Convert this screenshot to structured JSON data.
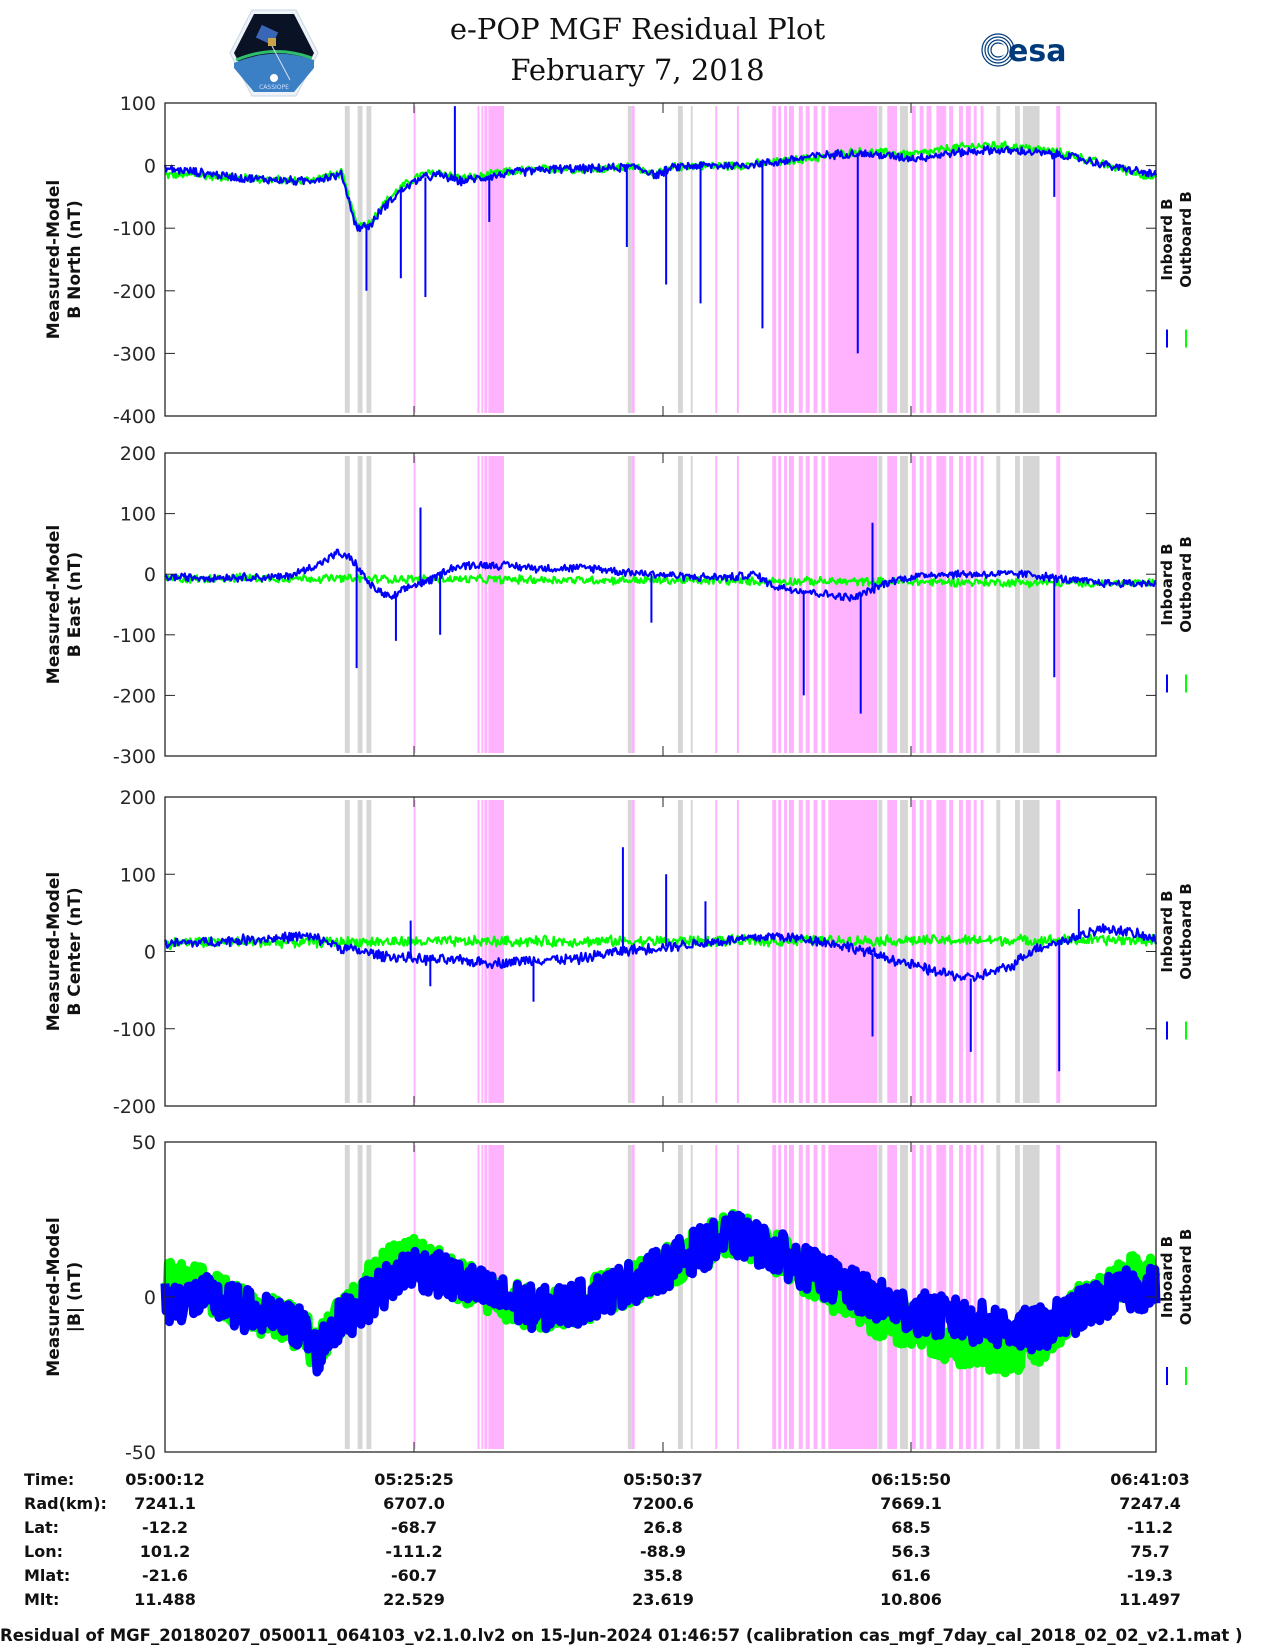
{
  "header": {
    "title": "e-POP MGF Residual Plot",
    "date": "February 7, 2018",
    "left_logo": "cassiope-mission-logo",
    "left_logo_text": "CASSIOPE",
    "right_logo": "esa-logo",
    "right_logo_text": "esa"
  },
  "colors": {
    "inboard": "#0000ff",
    "outboard": "#00ff00",
    "gray_band": "#d6d6d6",
    "pink_band": "#ffb3ff",
    "axis": "#262626"
  },
  "chart_data": [
    {
      "type": "line",
      "title": "",
      "xlabel": "",
      "ylabel": "Measured-Model\nB North (nT)",
      "ylabel_lines": [
        "Measured-Model",
        "B North (nT)"
      ],
      "ylim": [
        -400,
        100
      ],
      "yticks": [
        100,
        0,
        -100,
        -200,
        -300,
        -400
      ],
      "ytick_labels": [
        "100",
        "0",
        "-100",
        "-200",
        "-300",
        "-400"
      ],
      "xlim_minutes": [
        0,
        100.85
      ],
      "xticks_labels": [
        "05:00:12",
        "05:25:25",
        "05:50:37",
        "06:15:50",
        "06:41:03"
      ],
      "legend": [
        "Inboard B",
        "Outboard B"
      ],
      "legend_position": "right",
      "series": [
        {
          "name": "Inboard B",
          "color": "#0000ff",
          "x": [
            0,
            3,
            8,
            14,
            18,
            19.5,
            21,
            22,
            24,
            26,
            28,
            30,
            32,
            34,
            36,
            40,
            44,
            48,
            50,
            52,
            54,
            58,
            62,
            66,
            70,
            74,
            76,
            78,
            80,
            84,
            88,
            92,
            96,
            100.85
          ],
          "y": [
            -5,
            -10,
            -20,
            -25,
            -15,
            -100,
            -95,
            -70,
            -40,
            -20,
            -15,
            -25,
            -20,
            -15,
            -10,
            -5,
            -5,
            -2,
            -15,
            -2,
            0,
            0,
            5,
            15,
            20,
            15,
            12,
            15,
            20,
            25,
            22,
            15,
            0,
            -15
          ]
        },
        {
          "name": "Outboard B",
          "color": "#00ff00",
          "x": [
            0,
            3,
            8,
            14,
            18,
            19.5,
            21,
            22,
            24,
            26,
            28,
            30,
            32,
            34,
            36,
            40,
            44,
            48,
            50,
            52,
            54,
            58,
            62,
            66,
            70,
            74,
            76,
            78,
            80,
            84,
            88,
            92,
            96,
            100.85
          ],
          "y": [
            -15,
            -15,
            -20,
            -25,
            -12,
            -95,
            -90,
            -65,
            -35,
            -15,
            -10,
            -20,
            -18,
            -12,
            -8,
            -5,
            -5,
            -2,
            -15,
            -2,
            0,
            0,
            5,
            12,
            22,
            20,
            18,
            22,
            28,
            33,
            28,
            18,
            0,
            -20
          ]
        }
      ],
      "spikes": [
        {
          "x": 20.5,
          "y": -200
        },
        {
          "x": 24.0,
          "y": -180
        },
        {
          "x": 26.5,
          "y": -210
        },
        {
          "x": 33.0,
          "y": -90
        },
        {
          "x": 29.5,
          "y": 95
        },
        {
          "x": 47.0,
          "y": -130
        },
        {
          "x": 51.0,
          "y": -190
        },
        {
          "x": 54.5,
          "y": -220
        },
        {
          "x": 60.8,
          "y": -260
        },
        {
          "x": 70.5,
          "y": -300
        },
        {
          "x": 90.5,
          "y": -50
        }
      ]
    },
    {
      "type": "line",
      "title": "",
      "xlabel": "",
      "ylabel": "Measured-Model\nB East (nT)",
      "ylabel_lines": [
        "Measured-Model",
        "B East (nT)"
      ],
      "ylim": [
        -300,
        200
      ],
      "yticks": [
        200,
        100,
        0,
        -100,
        -200,
        -300
      ],
      "ytick_labels": [
        "200",
        "100",
        "0",
        "-100",
        "-200",
        "-300"
      ],
      "xlim_minutes": [
        0,
        100.85
      ],
      "xticks_labels": [
        "05:00:12",
        "05:25:25",
        "05:50:37",
        "06:15:50",
        "06:41:03"
      ],
      "legend": [
        "Inboard B",
        "Outboard B"
      ],
      "legend_position": "right",
      "series": [
        {
          "name": "Inboard B",
          "color": "#0000ff",
          "x": [
            0,
            4,
            8,
            12,
            14,
            16,
            17.5,
            19,
            21,
            23,
            25,
            27,
            29,
            31,
            34,
            38,
            42,
            44,
            46,
            50,
            54,
            58,
            60,
            62,
            66,
            70,
            74,
            78,
            82,
            86,
            88,
            92,
            96,
            100.85
          ],
          "y": [
            -5,
            -5,
            -5,
            -5,
            5,
            20,
            35,
            25,
            -20,
            -40,
            -20,
            -10,
            10,
            15,
            15,
            10,
            10,
            10,
            5,
            0,
            -5,
            -5,
            0,
            -20,
            -30,
            -40,
            -10,
            0,
            0,
            0,
            0,
            -10,
            -15,
            -15
          ]
        },
        {
          "name": "Outboard B",
          "color": "#00ff00",
          "x": [
            0,
            4,
            5,
            100.85
          ],
          "y": [
            -8,
            -8,
            -6,
            -15
          ]
        }
      ],
      "spikes": [
        {
          "x": 19.5,
          "y": -155
        },
        {
          "x": 23.5,
          "y": -110
        },
        {
          "x": 26.0,
          "y": 110
        },
        {
          "x": 28.0,
          "y": -100
        },
        {
          "x": 49.5,
          "y": -80
        },
        {
          "x": 65.0,
          "y": -200
        },
        {
          "x": 72.0,
          "y": 85
        },
        {
          "x": 70.8,
          "y": -230
        },
        {
          "x": 90.5,
          "y": -170
        }
      ]
    },
    {
      "type": "line",
      "title": "",
      "xlabel": "",
      "ylabel": "Measured-Model\nB Center (nT)",
      "ylabel_lines": [
        "Measured-Model",
        "B Center (nT)"
      ],
      "ylim": [
        -200,
        200
      ],
      "yticks": [
        200,
        100,
        0,
        -100,
        -200
      ],
      "ytick_labels": [
        "200",
        "100",
        "0",
        "-100",
        "-200"
      ],
      "xlim_minutes": [
        0,
        100.85
      ],
      "xticks_labels": [
        "05:00:12",
        "05:25:25",
        "05:50:37",
        "06:15:50",
        "06:41:03"
      ],
      "legend": [
        "Inboard B",
        "Outboard B"
      ],
      "legend_position": "right",
      "series": [
        {
          "name": "Inboard B",
          "color": "#0000ff",
          "x": [
            0,
            4,
            8,
            12,
            14,
            16,
            18,
            20,
            22,
            26,
            30,
            34,
            38,
            42,
            46,
            50,
            54,
            58,
            62,
            66,
            70,
            74,
            78,
            82,
            86,
            88,
            90,
            92,
            94,
            96,
            98,
            100.85
          ],
          "y": [
            10,
            12,
            15,
            18,
            20,
            15,
            5,
            0,
            -5,
            -10,
            -12,
            -15,
            -10,
            -10,
            0,
            5,
            10,
            15,
            20,
            15,
            5,
            -10,
            -25,
            -35,
            -20,
            0,
            10,
            15,
            25,
            30,
            25,
            15
          ]
        },
        {
          "name": "Outboard B",
          "color": "#00ff00",
          "x": [
            0,
            2,
            4,
            100.85
          ],
          "y": [
            10,
            12,
            12,
            15
          ]
        }
      ],
      "spikes": [
        {
          "x": 25.0,
          "y": 40
        },
        {
          "x": 27.0,
          "y": -45
        },
        {
          "x": 37.5,
          "y": -65
        },
        {
          "x": 46.6,
          "y": 135
        },
        {
          "x": 51.0,
          "y": 100
        },
        {
          "x": 55.0,
          "y": 65
        },
        {
          "x": 72.0,
          "y": -110
        },
        {
          "x": 82.0,
          "y": -130
        },
        {
          "x": 91.0,
          "y": -155
        },
        {
          "x": 93.0,
          "y": 55
        }
      ]
    },
    {
      "type": "line",
      "title": "",
      "xlabel": "",
      "ylabel": "Measured-Model\n|B| (nT)",
      "ylabel_lines": [
        "Measured-Model",
        "|B| (nT)"
      ],
      "ylim": [
        -50,
        50
      ],
      "yticks": [
        50,
        0,
        -50
      ],
      "ytick_labels": [
        "50",
        "0",
        "-50"
      ],
      "xlim_minutes": [
        0,
        100.85
      ],
      "xticks_labels": [
        "05:00:12",
        "05:25:25",
        "05:50:37",
        "06:15:50",
        "06:41:03"
      ],
      "legend": [
        "Inboard B",
        "Outboard B"
      ],
      "legend_position": "right",
      "series": [
        {
          "name": "Inboard B",
          "color": "#0000ff",
          "x": [
            0,
            4,
            8,
            12,
            14,
            15.5,
            17,
            19,
            21,
            23,
            25,
            27,
            30,
            34,
            38,
            42,
            46,
            50,
            54,
            58,
            62,
            66,
            70,
            74,
            78,
            82,
            86,
            88,
            90,
            92,
            94,
            96,
            98,
            100.85
          ],
          "y": [
            -2,
            0,
            -4,
            -8,
            -10,
            -18,
            -10,
            -5,
            0,
            5,
            10,
            8,
            5,
            0,
            -4,
            -2,
            3,
            8,
            15,
            20,
            15,
            8,
            2,
            -3,
            -6,
            -8,
            -10,
            -11,
            -9,
            -6,
            -3,
            0,
            2,
            3
          ]
        },
        {
          "name": "Outboard B",
          "color": "#00ff00",
          "x": [
            0,
            4,
            8,
            12,
            14,
            15.5,
            17,
            19,
            21,
            23,
            25,
            27,
            30,
            34,
            38,
            42,
            46,
            50,
            54,
            58,
            62,
            66,
            70,
            74,
            78,
            82,
            86,
            88,
            90,
            92,
            94,
            96,
            98,
            100.85
          ],
          "y": [
            5,
            3,
            -4,
            -8,
            -10,
            -18,
            -8,
            -2,
            5,
            10,
            14,
            10,
            5,
            0,
            -4,
            -2,
            3,
            8,
            15,
            21,
            15,
            6,
            -2,
            -8,
            -12,
            -16,
            -18,
            -17,
            -12,
            -6,
            0,
            5,
            7,
            8
          ]
        }
      ],
      "spikes": []
    }
  ],
  "bands": {
    "gray_minutes": [
      [
        18.3,
        18.8
      ],
      [
        19.6,
        20.1
      ],
      [
        20.5,
        21.0
      ],
      [
        47.1,
        47.5
      ],
      [
        52.2,
        52.7
      ],
      [
        53.5,
        53.7
      ],
      [
        72.6,
        73.0
      ],
      [
        74.8,
        75.6
      ],
      [
        84.6,
        85.0
      ],
      [
        86.5,
        87.0
      ],
      [
        87.3,
        89.0
      ]
    ],
    "pink_minutes": [
      [
        25.3,
        25.5
      ],
      [
        31.8,
        32.0
      ],
      [
        32.2,
        32.4
      ],
      [
        32.5,
        32.8
      ],
      [
        32.9,
        34.5
      ],
      [
        47.5,
        47.8
      ],
      [
        56.0,
        56.2
      ],
      [
        58.2,
        58.4
      ],
      [
        61.8,
        62.2
      ],
      [
        62.4,
        62.7
      ],
      [
        63.0,
        63.3
      ],
      [
        63.5,
        64.0
      ],
      [
        64.5,
        64.9
      ],
      [
        65.2,
        65.6
      ],
      [
        66.0,
        66.4
      ],
      [
        66.8,
        67.2
      ],
      [
        67.5,
        72.5
      ],
      [
        73.5,
        74.5
      ],
      [
        76.0,
        76.4
      ],
      [
        76.8,
        77.2
      ],
      [
        77.5,
        78.0
      ],
      [
        78.5,
        79.5
      ],
      [
        79.8,
        80.2
      ],
      [
        80.8,
        81.2
      ],
      [
        81.5,
        82.0
      ],
      [
        82.3,
        82.6
      ],
      [
        83.0,
        83.3
      ],
      [
        90.7,
        91.1
      ]
    ]
  },
  "info_table": {
    "rows": [
      {
        "label": "Time:",
        "values": [
          "05:00:12",
          "05:25:25",
          "05:50:37",
          "06:15:50",
          "06:41:03"
        ]
      },
      {
        "label": "Rad(km):",
        "values": [
          "7241.1",
          "6707.0",
          "7200.6",
          "7669.1",
          "7247.4"
        ]
      },
      {
        "label": "Lat:",
        "values": [
          "-12.2",
          "-68.7",
          "26.8",
          "68.5",
          "-11.2"
        ]
      },
      {
        "label": "Lon:",
        "values": [
          "101.2",
          "-111.2",
          "-88.9",
          "56.3",
          "75.7"
        ]
      },
      {
        "label": "Mlat:",
        "values": [
          "-21.6",
          "-60.7",
          "35.8",
          "61.6",
          "-19.3"
        ]
      },
      {
        "label": "Mlt:",
        "values": [
          "11.488",
          "22.529",
          "23.619",
          "10.806",
          "11.497"
        ]
      }
    ]
  },
  "footer": "Residual of MGF_20180207_050011_064103_v2.1.0.lv2 on 15-Jun-2024 01:46:57 (calibration cas_mgf_7day_cal_2018_02_02_v2.1.mat )"
}
